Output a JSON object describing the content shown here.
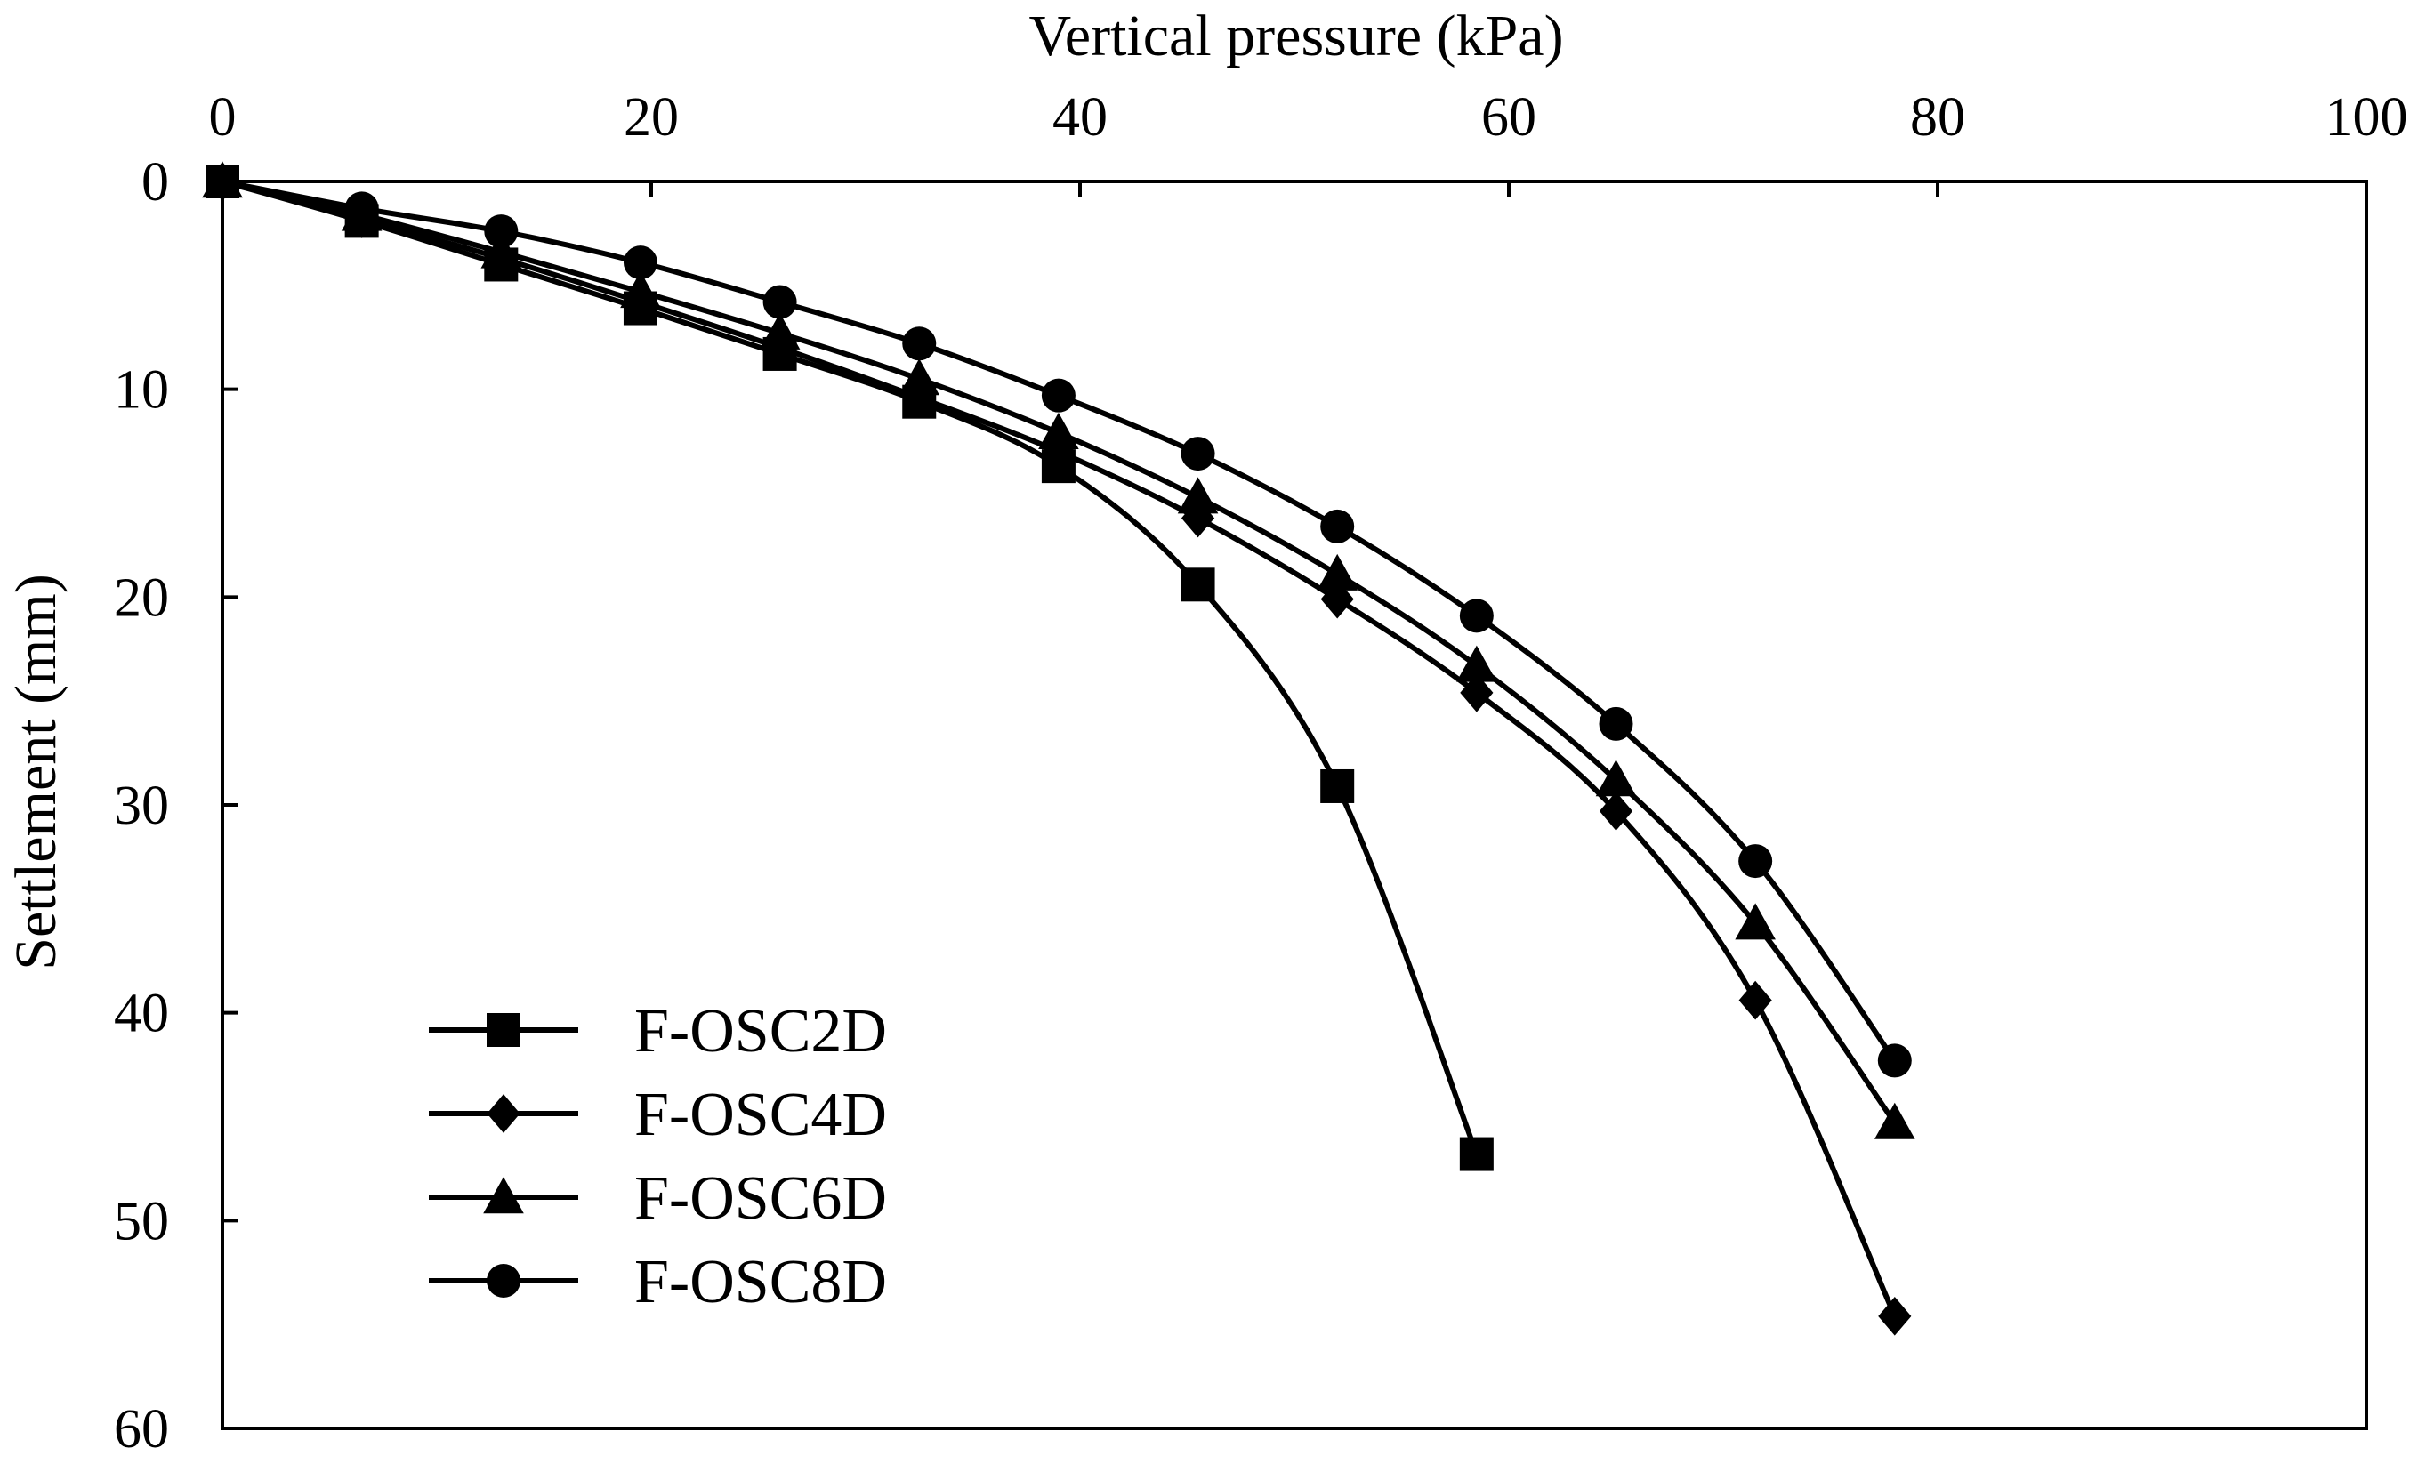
{
  "chart_data": {
    "type": "line",
    "title": "",
    "xlabel": "Vertical pressure (kPa)",
    "ylabel": "Settlement (mm)",
    "xlim": [
      0,
      100
    ],
    "ylim": [
      0,
      60
    ],
    "y_inverted": true,
    "x_axis_position": "top",
    "grid": false,
    "legend_position": "bottom-left",
    "xticks": [
      0,
      20,
      40,
      60,
      80,
      100
    ],
    "yticks": [
      0,
      10,
      20,
      30,
      40,
      50,
      60
    ],
    "xtick_labels": [
      "0",
      "20",
      "40",
      "60",
      "80",
      "100"
    ],
    "ytick_labels": [
      "0",
      "10",
      "20",
      "30",
      "40",
      "50",
      "60"
    ],
    "series": [
      {
        "name": "F-OSC2D",
        "marker": "square",
        "x": [
          0,
          6.5,
          13,
          19.5,
          26,
          32.5,
          39,
          45.5,
          52,
          58.5
        ],
        "y": [
          0,
          1.9,
          4.0,
          6.1,
          8.3,
          10.6,
          13.7,
          19.4,
          29.1,
          46.8
        ]
      },
      {
        "name": "F-OSC4D",
        "marker": "diamond",
        "x": [
          0,
          6.5,
          13,
          19.5,
          26,
          32.5,
          39,
          45.5,
          52,
          58.5,
          65,
          71.5,
          78
        ],
        "y": [
          0,
          1.8,
          3.7,
          5.8,
          8.0,
          10.4,
          13.0,
          16.2,
          20.1,
          24.6,
          30.3,
          39.4,
          54.6
        ]
      },
      {
        "name": "F-OSC6D",
        "marker": "triangle",
        "x": [
          0,
          6.5,
          13,
          19.5,
          26,
          32.5,
          39,
          45.5,
          52,
          58.5,
          65,
          71.5,
          78
        ],
        "y": [
          0,
          1.6,
          3.4,
          5.3,
          7.3,
          9.5,
          12.1,
          15.2,
          18.9,
          23.3,
          28.8,
          35.7,
          45.3
        ]
      },
      {
        "name": "F-OSC8D",
        "marker": "circle",
        "x": [
          0,
          6.5,
          13,
          19.5,
          26,
          32.5,
          39,
          45.5,
          52,
          58.5,
          65,
          71.5,
          78
        ],
        "y": [
          0,
          1.3,
          2.4,
          3.9,
          5.8,
          7.8,
          10.3,
          13.1,
          16.6,
          20.9,
          26.1,
          32.7,
          42.3
        ]
      }
    ]
  }
}
